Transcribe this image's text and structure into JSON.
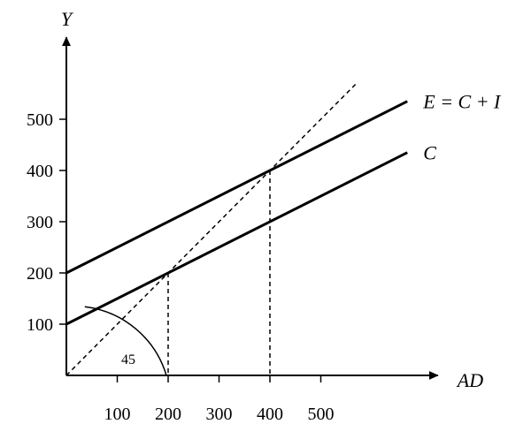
{
  "chart_data": {
    "type": "line",
    "xlabel": "AD",
    "ylabel": "Y",
    "x_ticks": [
      "100",
      "200",
      "300",
      "400",
      "500"
    ],
    "y_ticks": [
      "100",
      "200",
      "300",
      "400",
      "500"
    ],
    "xlim": [
      0,
      730
    ],
    "ylim": [
      0,
      660
    ],
    "series": [
      {
        "name": "E = C + I",
        "x": [
          0,
          670
        ],
        "y": [
          200,
          535
        ],
        "style": "solid"
      },
      {
        "name": "C",
        "x": [
          0,
          670
        ],
        "y": [
          100,
          435
        ],
        "style": "solid"
      },
      {
        "name": "",
        "x": [
          0,
          570
        ],
        "y": [
          0,
          570
        ],
        "style": "dashed"
      }
    ],
    "reference_lines": [
      {
        "x": 200,
        "y": 200
      },
      {
        "x": 400,
        "y": 400
      }
    ],
    "angle_label": "45",
    "grid": false,
    "colors": {
      "line": "#000000",
      "background": "#ffffff"
    }
  }
}
